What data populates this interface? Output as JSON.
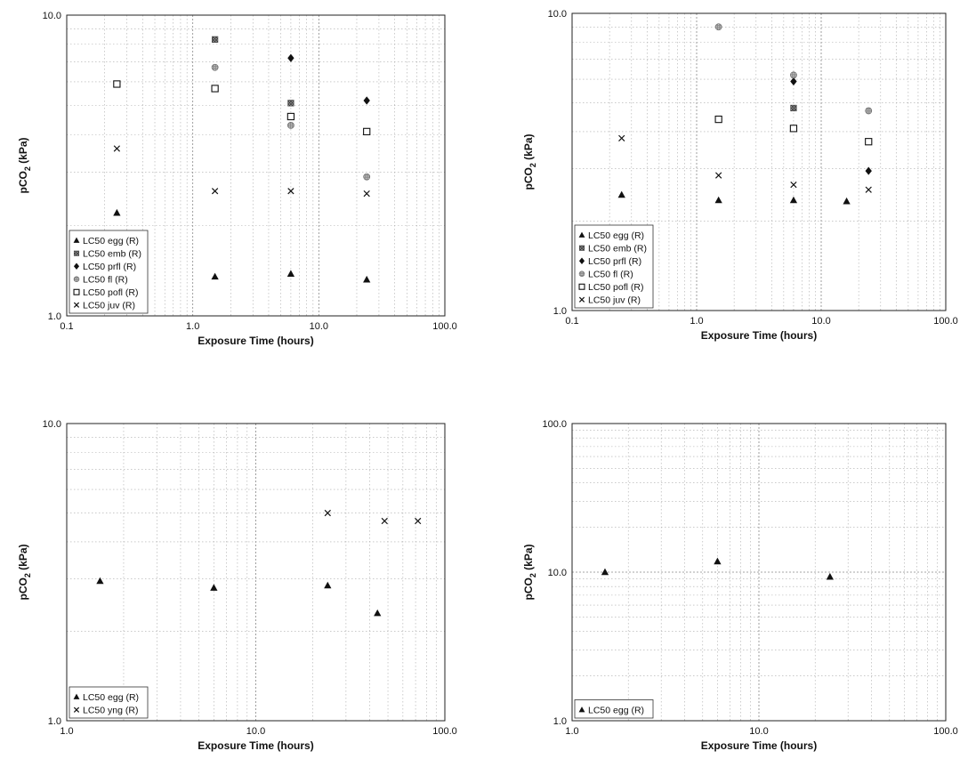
{
  "chart_data": [
    {
      "type": "scatter",
      "xlabel": "Exposure Time (hours)",
      "ylabel": "pCO2 (kPa)",
      "ylabel_main": "pCO",
      "ylabel_sub": "2",
      "ylabel_unit": " (kPa)",
      "x_scale": "log",
      "y_scale": "log",
      "xlim": [
        0.1,
        100
      ],
      "ylim": [
        1,
        10
      ],
      "x_ticks": [
        "0.1",
        "1.0",
        "10.0",
        "100.0"
      ],
      "y_ticks": [
        "1.0",
        "10.0"
      ],
      "grid": true,
      "legend_placement": "bottom-left",
      "series": [
        {
          "name": "LC50 egg (R)",
          "marker": "triangle",
          "color": "#111111",
          "points": [
            [
              0.25,
              2.2
            ],
            [
              1.5,
              1.35
            ],
            [
              6,
              1.38
            ],
            [
              24,
              1.32
            ]
          ]
        },
        {
          "name": "LC50 emb (R)",
          "marker": "hatched-square",
          "color": "#555555",
          "points": [
            [
              1.5,
              8.3
            ],
            [
              6,
              5.1
            ]
          ]
        },
        {
          "name": "LC50 prfl (R)",
          "marker": "diamond",
          "color": "#111111",
          "points": [
            [
              6,
              7.2
            ],
            [
              24,
              5.2
            ]
          ]
        },
        {
          "name": "LC50 fl (R)",
          "marker": "dotted-circle",
          "color": "#777777",
          "points": [
            [
              1.5,
              6.7
            ],
            [
              6,
              4.3
            ],
            [
              24,
              2.9
            ]
          ]
        },
        {
          "name": "LC50 pofl (R)",
          "marker": "open-square",
          "color": "#111111",
          "points": [
            [
              0.25,
              5.9
            ],
            [
              1.5,
              5.7
            ],
            [
              6,
              4.6
            ],
            [
              24,
              4.1
            ]
          ]
        },
        {
          "name": "LC50 juv (R)",
          "marker": "cross",
          "color": "#111111",
          "points": [
            [
              0.25,
              3.6
            ],
            [
              1.5,
              2.6
            ],
            [
              6,
              2.6
            ],
            [
              24,
              2.55
            ]
          ]
        }
      ]
    },
    {
      "type": "scatter",
      "xlabel": "Exposure Time (hours)",
      "ylabel": "pCO2 (kPa)",
      "ylabel_main": "pCO",
      "ylabel_sub": "2",
      "ylabel_unit": " (kPa)",
      "x_scale": "log",
      "y_scale": "log",
      "xlim": [
        0.1,
        100
      ],
      "ylim": [
        1,
        10
      ],
      "x_ticks": [
        "0.1",
        "1.0",
        "10.0",
        "100.0"
      ],
      "y_ticks": [
        "1.0",
        "10.0"
      ],
      "grid": true,
      "legend_placement": "bottom-left",
      "series": [
        {
          "name": "LC50 egg (R)",
          "marker": "triangle",
          "color": "#111111",
          "points": [
            [
              0.25,
              2.45
            ],
            [
              1.5,
              2.35
            ],
            [
              6,
              2.35
            ],
            [
              16,
              2.33
            ]
          ]
        },
        {
          "name": "LC50 emb (R)",
          "marker": "hatched-square",
          "color": "#555555",
          "points": [
            [
              6,
              4.8
            ]
          ]
        },
        {
          "name": "LC50 prfl (R)",
          "marker": "diamond",
          "color": "#111111",
          "points": [
            [
              6,
              5.9
            ],
            [
              24,
              2.95
            ]
          ]
        },
        {
          "name": "LC50 fl (R)",
          "marker": "dotted-circle",
          "color": "#777777",
          "points": [
            [
              1.5,
              9.0
            ],
            [
              6,
              6.2
            ],
            [
              24,
              4.7
            ]
          ]
        },
        {
          "name": "LC50 pofl (R)",
          "marker": "open-square",
          "color": "#111111",
          "points": [
            [
              1.5,
              4.4
            ],
            [
              6,
              4.1
            ],
            [
              24,
              3.7
            ]
          ]
        },
        {
          "name": "LC50 juv (R)",
          "marker": "cross",
          "color": "#111111",
          "points": [
            [
              0.25,
              3.8
            ],
            [
              1.5,
              2.85
            ],
            [
              6,
              2.65
            ],
            [
              24,
              2.55
            ]
          ]
        }
      ]
    },
    {
      "type": "scatter",
      "xlabel": "Exposure Time (hours)",
      "ylabel": "pCO2 (kPa)",
      "ylabel_main": "pCO",
      "ylabel_sub": "2",
      "ylabel_unit": " (kPa)",
      "x_scale": "log",
      "y_scale": "log",
      "xlim": [
        1,
        100
      ],
      "ylim": [
        1,
        10
      ],
      "x_ticks": [
        "1.0",
        "10.0",
        "100.0"
      ],
      "y_ticks": [
        "1.0",
        "10.0"
      ],
      "grid": true,
      "legend_placement": "bottom-left",
      "series": [
        {
          "name": "LC50 egg (R)",
          "marker": "triangle",
          "color": "#111111",
          "points": [
            [
              1.5,
              2.95
            ],
            [
              6,
              2.8
            ],
            [
              24,
              2.85
            ],
            [
              44,
              2.3
            ]
          ]
        },
        {
          "name": "LC50 yng (R)",
          "marker": "cross",
          "color": "#111111",
          "points": [
            [
              24,
              5.0
            ],
            [
              48,
              4.7
            ],
            [
              72,
              4.7
            ]
          ]
        }
      ]
    },
    {
      "type": "scatter",
      "xlabel": "Exposure Time (hours)",
      "ylabel": "pCO2 (kPa)",
      "ylabel_main": "pCO",
      "ylabel_sub": "2",
      "ylabel_unit": " (kPa)",
      "x_scale": "log",
      "y_scale": "log",
      "xlim": [
        1,
        100
      ],
      "ylim": [
        1,
        100
      ],
      "x_ticks": [
        "1.0",
        "10.0",
        "100.0"
      ],
      "y_ticks": [
        "1.0",
        "10.0",
        "100.0"
      ],
      "grid": true,
      "legend_placement": "bottom-left",
      "series": [
        {
          "name": "LC50 egg (R)",
          "marker": "triangle",
          "color": "#111111",
          "points": [
            [
              1.5,
              10.0
            ],
            [
              6,
              11.8
            ],
            [
              24,
              9.3
            ]
          ]
        }
      ]
    }
  ]
}
